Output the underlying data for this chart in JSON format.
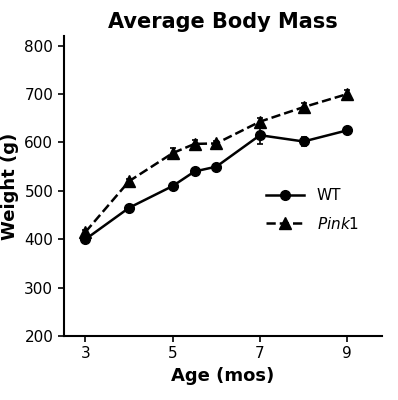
{
  "title": "Average Body Mass",
  "xlabel": "Age (mos)",
  "ylabel": "Weight (g)",
  "xlim": [
    2.5,
    9.8
  ],
  "ylim": [
    200,
    820
  ],
  "yticks": [
    200,
    300,
    400,
    500,
    600,
    700,
    800
  ],
  "xticks": [
    3,
    5,
    7,
    9
  ],
  "wt_x": [
    3,
    4,
    5,
    5.5,
    6,
    7,
    8,
    9
  ],
  "wt_y": [
    400,
    465,
    510,
    540,
    550,
    615,
    602,
    625
  ],
  "wt_yerr": [
    5,
    5,
    5,
    5,
    5,
    18,
    10,
    5
  ],
  "pink1_x": [
    3,
    4,
    5,
    5.5,
    6,
    7,
    8,
    9
  ],
  "pink1_y": [
    415,
    520,
    578,
    597,
    598,
    643,
    673,
    700
  ],
  "pink1_yerr": [
    5,
    5,
    10,
    8,
    5,
    8,
    8,
    8
  ],
  "line_color": "#000000",
  "bg_color": "#ffffff",
  "title_fontsize": 15,
  "label_fontsize": 13,
  "tick_fontsize": 11,
  "legend_fontsize": 11
}
